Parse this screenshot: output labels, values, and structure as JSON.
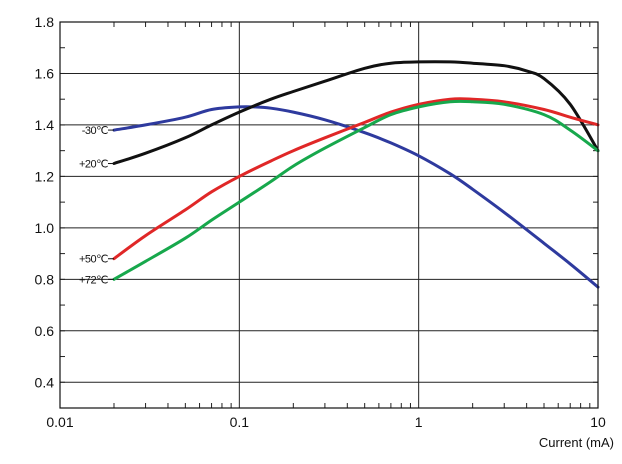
{
  "chart_data": {
    "type": "line",
    "title": "",
    "xlabel": "Current (mA)",
    "ylabel": "",
    "x_scale": "log",
    "xlim": [
      0.01,
      10
    ],
    "ylim": [
      0.3,
      1.8
    ],
    "x_ticks": [
      0.01,
      0.1,
      1,
      10
    ],
    "x_tick_labels": [
      "0.01",
      "0.1",
      "1",
      "10"
    ],
    "y_ticks": [
      0.4,
      0.6,
      0.8,
      1.0,
      1.2,
      1.4,
      1.6,
      1.8
    ],
    "y_tick_labels": [
      "0.4",
      "0.6",
      "0.8",
      "1.0",
      "1.2",
      "1.4",
      "1.6",
      "1.8"
    ],
    "grid": true,
    "series": [
      {
        "name": "-30℃",
        "color": "#2e3a9e",
        "x": [
          0.02,
          0.03,
          0.05,
          0.07,
          0.1,
          0.12,
          0.15,
          0.2,
          0.3,
          0.5,
          0.7,
          1,
          1.5,
          2,
          3,
          5,
          7,
          10
        ],
        "y": [
          1.38,
          1.4,
          1.43,
          1.46,
          1.47,
          1.47,
          1.465,
          1.45,
          1.42,
          1.37,
          1.33,
          1.28,
          1.21,
          1.15,
          1.06,
          0.94,
          0.86,
          0.77
        ]
      },
      {
        "name": "+20℃",
        "color": "#111111",
        "x": [
          0.02,
          0.03,
          0.05,
          0.07,
          0.1,
          0.15,
          0.2,
          0.3,
          0.5,
          0.7,
          1,
          1.5,
          2,
          3,
          4,
          5,
          7,
          10
        ],
        "y": [
          1.25,
          1.29,
          1.35,
          1.4,
          1.45,
          1.5,
          1.53,
          1.57,
          1.62,
          1.64,
          1.645,
          1.645,
          1.64,
          1.63,
          1.61,
          1.58,
          1.48,
          1.3
        ]
      },
      {
        "name": "+50℃",
        "color": "#e02727",
        "x": [
          0.02,
          0.03,
          0.05,
          0.07,
          0.1,
          0.15,
          0.2,
          0.3,
          0.5,
          0.7,
          1,
          1.5,
          2,
          3,
          5,
          7,
          10
        ],
        "y": [
          0.88,
          0.97,
          1.07,
          1.14,
          1.2,
          1.26,
          1.3,
          1.35,
          1.41,
          1.45,
          1.48,
          1.5,
          1.5,
          1.49,
          1.46,
          1.43,
          1.4
        ]
      },
      {
        "name": "+72℃",
        "color": "#17a84c",
        "x": [
          0.02,
          0.03,
          0.05,
          0.07,
          0.1,
          0.15,
          0.2,
          0.3,
          0.5,
          0.7,
          1,
          1.5,
          2,
          3,
          5,
          7,
          10
        ],
        "y": [
          0.8,
          0.87,
          0.96,
          1.03,
          1.1,
          1.18,
          1.24,
          1.31,
          1.39,
          1.44,
          1.47,
          1.49,
          1.49,
          1.48,
          1.44,
          1.38,
          1.3
        ]
      }
    ]
  }
}
